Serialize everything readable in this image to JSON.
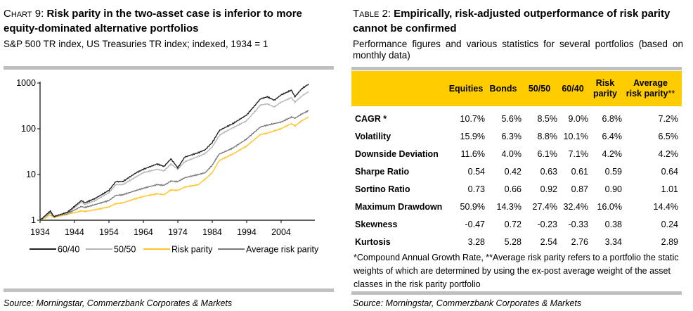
{
  "left": {
    "label": "Chart 9:",
    "title": "Risk parity in the two-asset case is inferior to more equity-dominated alternative portfolios",
    "subtitle": "S&P 500 TR index, US Treasuries TR index; indexed, 1934 = 1",
    "source": "Source: Morningstar, Commerzbank Corporates & Markets"
  },
  "chart_data": {
    "type": "line",
    "title": "",
    "xlabel": "",
    "ylabel": "",
    "y_scale": "log",
    "ylim": [
      1,
      1000
    ],
    "y_ticks": [
      "1",
      "10",
      "100",
      "1000"
    ],
    "x_ticks": [
      "1934",
      "1944",
      "1954",
      "1964",
      "1974",
      "1984",
      "1994",
      "2004"
    ],
    "xlim": [
      1934,
      2014
    ],
    "grid": false,
    "legend_position": "bottom",
    "x": [
      1934,
      1937,
      1938,
      1942,
      1946,
      1947,
      1950,
      1954,
      1956,
      1958,
      1962,
      1964,
      1968,
      1970,
      1972,
      1974,
      1976,
      1980,
      1982,
      1984,
      1986,
      1987,
      1990,
      1994,
      1998,
      2000,
      2002,
      2004,
      2007,
      2008,
      2010,
      2012
    ],
    "series": [
      {
        "name": "60/40",
        "color": "#222222",
        "values": [
          1,
          1.6,
          1.2,
          1.5,
          2.7,
          2.4,
          3.0,
          4.5,
          7,
          7,
          11,
          13,
          17,
          15,
          22,
          14,
          24,
          30,
          35,
          50,
          90,
          100,
          130,
          200,
          450,
          500,
          420,
          550,
          700,
          500,
          750,
          950
        ]
      },
      {
        "name": "50/50",
        "color": "#b5b5b5",
        "values": [
          1,
          1.5,
          1.2,
          1.45,
          2.5,
          2.2,
          2.7,
          4,
          6,
          6,
          9,
          11,
          13,
          12,
          17,
          13,
          19,
          25,
          29,
          40,
          70,
          80,
          105,
          150,
          330,
          350,
          300,
          380,
          480,
          380,
          520,
          650
        ]
      },
      {
        "name": "Risk parity",
        "color": "#ffc425",
        "values": [
          1,
          1.3,
          1.15,
          1.35,
          1.6,
          1.55,
          1.7,
          1.95,
          2.3,
          2.4,
          3.0,
          3.3,
          3.8,
          3.6,
          4.6,
          4.5,
          5.3,
          6,
          8,
          11,
          20,
          22,
          28,
          42,
          75,
          80,
          90,
          100,
          130,
          115,
          150,
          180
        ]
      },
      {
        "name": "Average risk parity",
        "color": "#7a7a7a",
        "values": [
          1,
          1.45,
          1.2,
          1.4,
          2.0,
          1.9,
          2.2,
          2.7,
          3.5,
          3.6,
          4.5,
          5,
          6,
          5.8,
          7.2,
          7,
          8.5,
          10,
          11,
          16,
          28,
          30,
          38,
          60,
          110,
          120,
          130,
          140,
          180,
          170,
          210,
          250
        ]
      }
    ]
  },
  "right": {
    "label": "Table 2:",
    "title": "Empirically, risk-adjusted outperformance of risk parity cannot be confirmed",
    "subtitle": "Performance figures and various statistics for several portfolios (based on monthly data)",
    "columns": [
      "Equities",
      "Bonds",
      "50/50",
      "60/40",
      "Risk parity",
      "Average risk parity**"
    ],
    "rows": [
      {
        "label": "CAGR *",
        "values": [
          "10.7%",
          "5.6%",
          "8.5%",
          "9.0%",
          "6.8%",
          "7.2%"
        ]
      },
      {
        "label": "Volatility",
        "values": [
          "15.9%",
          "6.3%",
          "8.8%",
          "10.1%",
          "6.4%",
          "6.5%"
        ]
      },
      {
        "label": "Downside Deviation",
        "values": [
          "11.6%",
          "4.0%",
          "6.1%",
          "7.1%",
          "4.2%",
          "4.2%"
        ]
      },
      {
        "label": "Sharpe Ratio",
        "values": [
          "0.54",
          "0.42",
          "0.63",
          "0.61",
          "0.59",
          "0.64"
        ]
      },
      {
        "label": "Sortino Ratio",
        "values": [
          "0.73",
          "0.66",
          "0.92",
          "0.87",
          "0.90",
          "1.01"
        ]
      },
      {
        "label": "Maximum Drawdown",
        "values": [
          "50.9%",
          "14.3%",
          "27.4%",
          "32.4%",
          "16.0%",
          "14.4%"
        ]
      },
      {
        "label": "Skewness",
        "values": [
          "-0.47",
          "0.72",
          "-0.23",
          "-0.33",
          "0.38",
          "0.24"
        ]
      },
      {
        "label": "Kurtosis",
        "values": [
          "3.28",
          "5.28",
          "2.54",
          "2.76",
          "3.34",
          "2.89"
        ]
      }
    ],
    "footnote": "*Compound Annual Growth Rate, **Average risk parity refers to a portfolio the static weights of which are determined by using the ex-post average weight of the asset classes in the risk parity portfolio",
    "source": "Source: Morningstar, Commerzbank Corporates & Markets",
    "header_color": "#ffcc00"
  }
}
